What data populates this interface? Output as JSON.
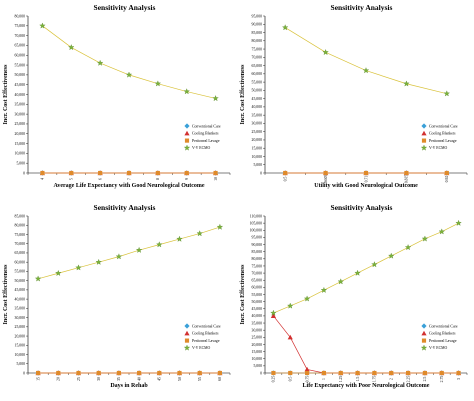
{
  "chart_data": [
    {
      "type": "line",
      "title": "Sensitivity Analysis",
      "xlabel": "Average Life Expectancy with Good Neurological Outcome",
      "ylabel": "Incr. Cost Effectiveness",
      "categories": [
        "4",
        "5",
        "6",
        "7",
        "8",
        "9",
        "10"
      ],
      "ylim": [
        0,
        80000
      ],
      "ytick_labels": [
        "0",
        "5,000",
        "10,000",
        "15,000",
        "20,000",
        "25,000",
        "30,000",
        "35,000",
        "40,000",
        "45,000",
        "50,000",
        "55,000",
        "60,000",
        "65,000",
        "70,000",
        "75,000",
        "80,000"
      ],
      "series": [
        {
          "name": "Conventional Care",
          "values": [
            0,
            0,
            0,
            0,
            0,
            0,
            0
          ],
          "color": "#3aa0d8",
          "marker": "diamond"
        },
        {
          "name": "Cooling Blankets",
          "values": [
            0,
            0,
            0,
            0,
            0,
            0,
            0
          ],
          "color": "#d23030",
          "marker": "triangle"
        },
        {
          "name": "Peritoneal Lavage",
          "values": [
            0,
            0,
            0,
            0,
            0,
            0,
            0
          ],
          "color": "#e08a2a",
          "marker": "square"
        },
        {
          "name": "V-V ECMO",
          "values": [
            75000,
            64000,
            56000,
            50000,
            45500,
            41500,
            38000
          ],
          "color": "#7bb33a",
          "marker": "star"
        }
      ],
      "legend": "right",
      "grid": false
    },
    {
      "type": "line",
      "title": "Sensitivity Analysis",
      "xlabel": "Utility with Good Neurological Outcome",
      "ylabel": "Incr. Cost Effectiveness",
      "categories": [
        "0.5",
        "0.605",
        "0.71",
        "0.815",
        "0.92"
      ],
      "ylim": [
        0,
        95000
      ],
      "ytick_labels": [
        "0",
        "5,000",
        "10,000",
        "15,000",
        "20,000",
        "25,000",
        "30,000",
        "35,000",
        "40,000",
        "45,000",
        "50,000",
        "55,000",
        "60,000",
        "65,000",
        "70,000",
        "75,000",
        "80,000",
        "85,000",
        "90,000",
        "95,000"
      ],
      "series": [
        {
          "name": "Conventional Care",
          "values": [
            0,
            0,
            0,
            0,
            0
          ],
          "color": "#3aa0d8",
          "marker": "diamond"
        },
        {
          "name": "Cooling Blankets",
          "values": [
            0,
            0,
            0,
            0,
            0
          ],
          "color": "#d23030",
          "marker": "triangle"
        },
        {
          "name": "Peritoneal Lavage",
          "values": [
            0,
            0,
            0,
            0,
            0
          ],
          "color": "#e08a2a",
          "marker": "square"
        },
        {
          "name": "V-V ECMO",
          "values": [
            88000,
            73000,
            62000,
            54000,
            48000
          ],
          "color": "#7bb33a",
          "marker": "star"
        }
      ],
      "legend": "right",
      "grid": false
    },
    {
      "type": "line",
      "title": "Sensitivity Analysis",
      "xlabel": "Days in Rehab",
      "ylabel": "Incr. Cost Effectiveness",
      "categories": [
        "15",
        "20",
        "25",
        "30",
        "35",
        "40",
        "45",
        "50",
        "55",
        "60"
      ],
      "ylim": [
        0,
        85000
      ],
      "ytick_labels": [
        "0",
        "5,000",
        "10,000",
        "15,000",
        "20,000",
        "25,000",
        "30,000",
        "35,000",
        "40,000",
        "45,000",
        "50,000",
        "55,000",
        "60,000",
        "65,000",
        "70,000",
        "75,000",
        "80,000",
        "85,000"
      ],
      "series": [
        {
          "name": "Conventional Care",
          "values": [
            0,
            0,
            0,
            0,
            0,
            0,
            0,
            0,
            0,
            0
          ],
          "color": "#3aa0d8",
          "marker": "diamond"
        },
        {
          "name": "Cooling Blankets",
          "values": [
            0,
            0,
            0,
            0,
            0,
            0,
            0,
            0,
            0,
            0
          ],
          "color": "#d23030",
          "marker": "triangle"
        },
        {
          "name": "Peritoneal Lavage",
          "values": [
            0,
            0,
            0,
            0,
            0,
            0,
            0,
            0,
            0,
            0
          ],
          "color": "#e08a2a",
          "marker": "square"
        },
        {
          "name": "V-V ECMO",
          "values": [
            51000,
            54000,
            57000,
            60000,
            63000,
            66500,
            69500,
            72500,
            75500,
            79000
          ],
          "color": "#7bb33a",
          "marker": "star"
        }
      ],
      "legend": "right",
      "grid": false
    },
    {
      "type": "line",
      "title": "Sensitivity Analysis",
      "xlabel": "Life Expectancy with Poor Neurological Outcome",
      "ylabel": "Incr. Cost Effectiveness",
      "categories": [
        "0.25",
        "0.5",
        "0.75",
        "1",
        "1.25",
        "1.5",
        "1.75",
        "2",
        "2.25",
        "2.5",
        "2.75",
        "3"
      ],
      "ylim": [
        0,
        110000
      ],
      "ytick_labels": [
        "0",
        "5,000",
        "10,000",
        "15,000",
        "20,000",
        "25,000",
        "30,000",
        "35,000",
        "40,000",
        "45,000",
        "50,000",
        "55,000",
        "60,000",
        "65,000",
        "70,000",
        "75,000",
        "80,000",
        "85,000",
        "90,000",
        "95,000",
        "100,000",
        "105,000",
        "110,000"
      ],
      "series": [
        {
          "name": "Conventional Care",
          "values": [
            0,
            0,
            0,
            0,
            0,
            0,
            0,
            0,
            0,
            0,
            0,
            0
          ],
          "color": "#3aa0d8",
          "marker": "diamond"
        },
        {
          "name": "Cooling Blankets",
          "values": [
            40000,
            25000,
            2500,
            0,
            0,
            0,
            0,
            0,
            0,
            0,
            0,
            0
          ],
          "color": "#d23030",
          "marker": "triangle"
        },
        {
          "name": "Peritoneal Lavage",
          "values": [
            0,
            0,
            0,
            0,
            0,
            0,
            0,
            0,
            0,
            0,
            0,
            0
          ],
          "color": "#e08a2a",
          "marker": "square"
        },
        {
          "name": "V-V ECMO",
          "values": [
            42000,
            47000,
            52000,
            58000,
            64000,
            70000,
            76000,
            82000,
            88000,
            94000,
            99000,
            105000
          ],
          "color": "#7bb33a",
          "marker": "star"
        }
      ],
      "legend": "right",
      "grid": false
    }
  ]
}
